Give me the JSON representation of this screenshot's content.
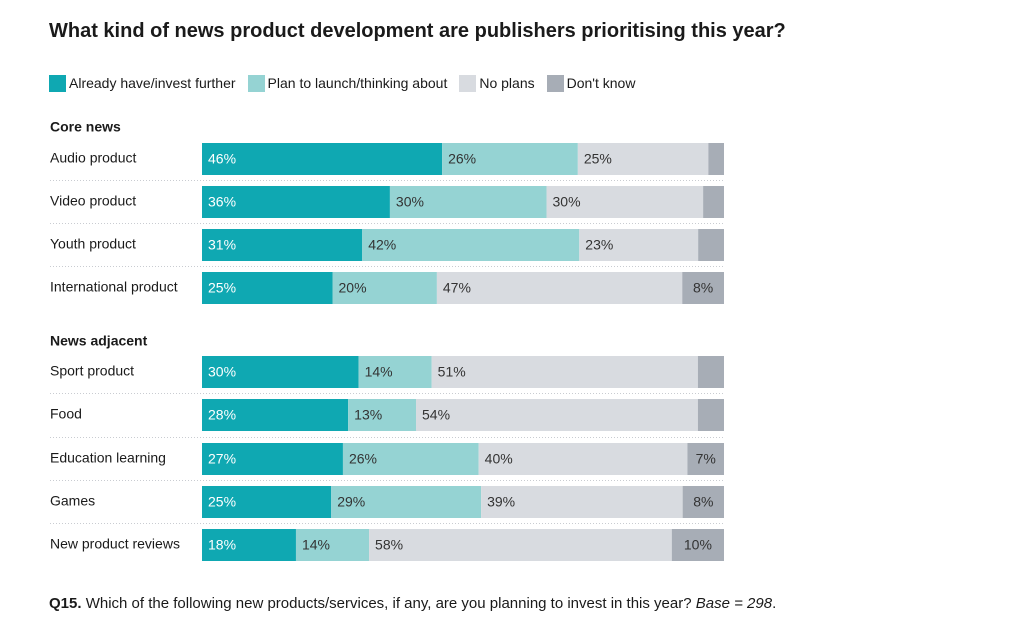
{
  "title": "What kind of news product development are publishers prioritising this year?",
  "footnote": {
    "label": "Q15.",
    "question": "Which of the following new products/services, if any, are you planning to invest in this year?",
    "base": "Base = 298",
    "end": "."
  },
  "colors": {
    "already": "#0fa8b2",
    "plan": "#95d3d3",
    "no_plans": "#d8dbe0",
    "dont_know": "#a7adb6",
    "label_dark": "#333333",
    "label_light": "#ffffff"
  },
  "chart_data": {
    "type": "bar",
    "orientation": "horizontal",
    "stacked": true,
    "normalized": true,
    "title": "What kind of news product development are publishers prioritising this year?",
    "xlim": [
      0,
      100
    ],
    "legend": {
      "placement": "top-left"
    },
    "series": [
      {
        "name": "Already have/invest further",
        "color": "#0fa8b2"
      },
      {
        "name": "Plan to launch/thinking about",
        "color": "#95d3d3"
      },
      {
        "name": "No plans",
        "color": "#d8dbe0"
      },
      {
        "name": "Don't know",
        "color": "#a7adb6"
      }
    ],
    "groups": [
      {
        "name": "Core news",
        "rows": [
          {
            "label": "Audio product",
            "values": [
              46,
              26,
              25,
              3
            ],
            "labels": [
              "46%",
              "26%",
              "25%",
              ""
            ]
          },
          {
            "label": "Video product",
            "values": [
              36,
              30,
              30,
              4
            ],
            "labels": [
              "36%",
              "30%",
              "30%",
              ""
            ]
          },
          {
            "label": "Youth product",
            "values": [
              31,
              42,
              23,
              5
            ],
            "labels": [
              "31%",
              "42%",
              "23%",
              ""
            ]
          },
          {
            "label": "International product",
            "values": [
              25,
              20,
              47,
              8
            ],
            "labels": [
              "25%",
              "20%",
              "47%",
              "8%"
            ]
          }
        ]
      },
      {
        "name": "News adjacent",
        "rows": [
          {
            "label": "Sport product",
            "values": [
              30,
              14,
              51,
              5
            ],
            "labels": [
              "30%",
              "14%",
              "51%",
              ""
            ]
          },
          {
            "label": "Food",
            "values": [
              28,
              13,
              54,
              5
            ],
            "labels": [
              "28%",
              "13%",
              "54%",
              ""
            ]
          },
          {
            "label": "Education learning",
            "values": [
              27,
              26,
              40,
              7
            ],
            "labels": [
              "27%",
              "26%",
              "40%",
              "7%"
            ]
          },
          {
            "label": "Games",
            "values": [
              25,
              29,
              39,
              8
            ],
            "labels": [
              "25%",
              "29%",
              "39%",
              "8%"
            ]
          },
          {
            "label": "New product reviews",
            "values": [
              18,
              14,
              58,
              10
            ],
            "labels": [
              "18%",
              "14%",
              "58%",
              "10%"
            ]
          }
        ]
      }
    ]
  }
}
